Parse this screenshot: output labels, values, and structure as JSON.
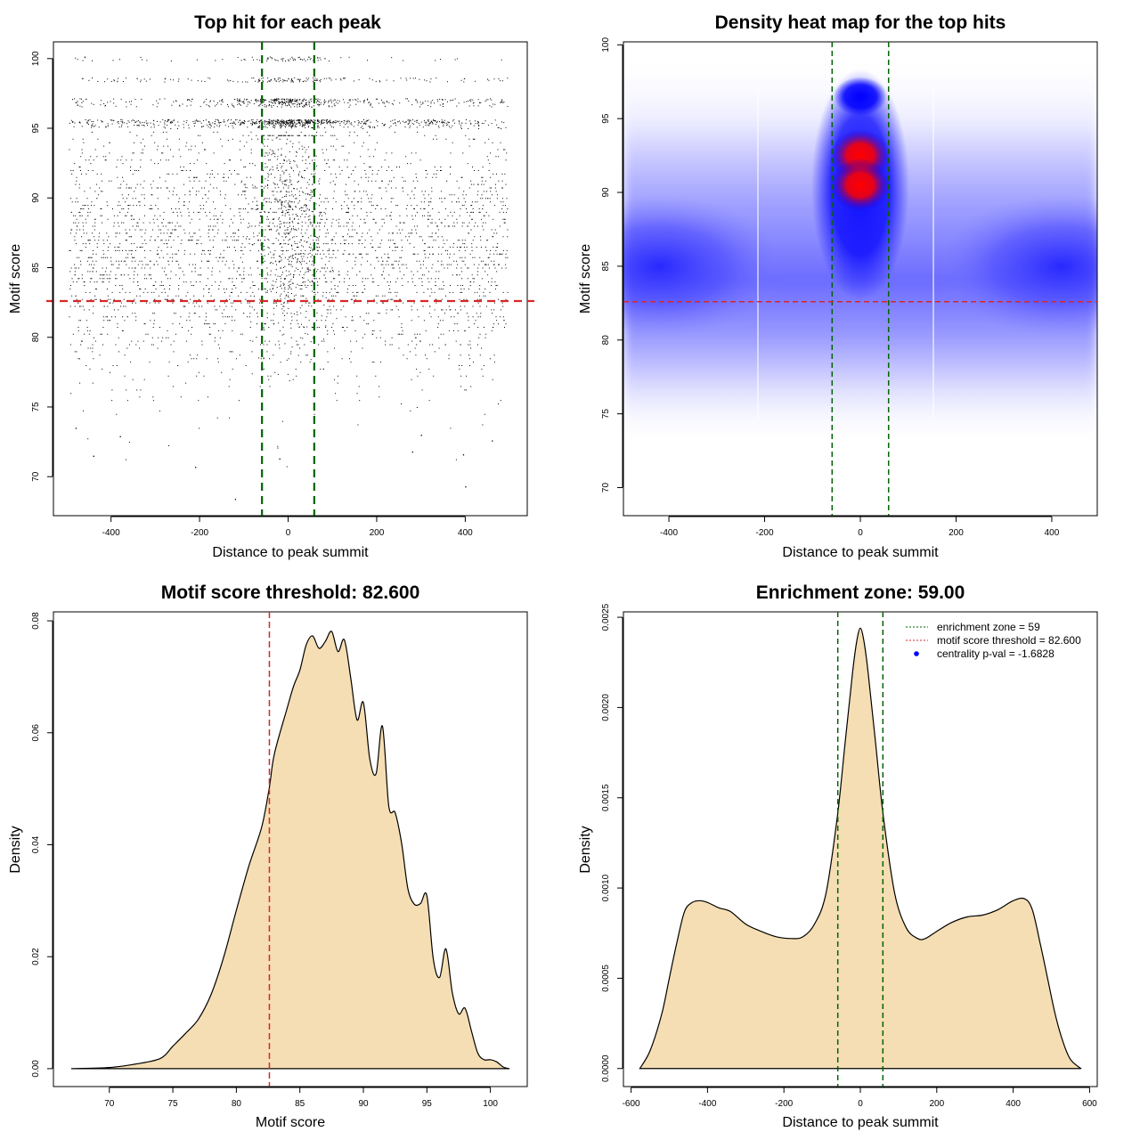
{
  "chart_data": [
    {
      "type": "scatter",
      "title": "Top hit for each peak",
      "xlabel": "Distance to peak summit",
      "ylabel": "Motif score",
      "xlim": [
        -530,
        540
      ],
      "ylim": [
        67.2,
        101.2
      ],
      "xticks": [
        -400,
        -200,
        0,
        200,
        400
      ],
      "yticks": [
        70,
        75,
        80,
        85,
        90,
        95,
        100
      ],
      "points_description": "Dense cloud of top-hit points across x in [-500, 500]; density highest between 82 and 95, concentrated around x=0; sparse below 77; discrete bands near 95.5, 97, 98.5, 100",
      "sample_points": [
        {
          "x": -120,
          "y": 68.4
        },
        {
          "x": 400,
          "y": 69.3
        },
        {
          "x": -210,
          "y": 70.7
        },
        {
          "x": -20,
          "y": 71.3
        },
        {
          "x": -440,
          "y": 71.5
        },
        {
          "x": 395,
          "y": 71.6
        },
        {
          "x": 280,
          "y": 71.8
        },
        {
          "x": 460,
          "y": 72.6
        },
        {
          "x": -480,
          "y": 73.5
        },
        {
          "x": 300,
          "y": 73.0
        },
        {
          "x": -380,
          "y": 72.9
        }
      ],
      "hlines": [
        {
          "y": 82.6,
          "color": "#d62728",
          "style": "dashed",
          "label": "motif score threshold"
        }
      ],
      "vlines": [
        {
          "x": -59,
          "color": "#006400",
          "style": "dashed"
        },
        {
          "x": 59,
          "color": "#006400",
          "style": "dashed"
        }
      ]
    },
    {
      "type": "heatmap",
      "title": "Density heat map for the top hits",
      "xlabel": "Distance to peak summit",
      "ylabel": "Motif score",
      "xlim": [
        -495,
        495
      ],
      "ylim": [
        68.1,
        100.2
      ],
      "xticks": [
        -400,
        -200,
        0,
        200,
        400
      ],
      "yticks": [
        70,
        75,
        80,
        85,
        90,
        95,
        100
      ],
      "colorscale": [
        "#ffffff",
        "#0000ff",
        "#ff0000"
      ],
      "hotspots": [
        {
          "x": 0,
          "y": 92.5,
          "level": "high",
          "color": "#ff0000"
        },
        {
          "x": 0,
          "y": 90.5,
          "level": "high",
          "color": "#ff0000"
        },
        {
          "x": 0,
          "y": 96.5,
          "level": "medium",
          "color": "#0000ff"
        },
        {
          "x": -420,
          "y": 85,
          "level": "medium",
          "color": "#2222ff"
        },
        {
          "x": 420,
          "y": 85,
          "level": "medium",
          "color": "#2222ff"
        }
      ],
      "hlines": [
        {
          "y": 82.6,
          "color": "#d62728",
          "style": "dashed"
        }
      ],
      "vlines": [
        {
          "x": -59,
          "color": "#006400",
          "style": "dashed"
        },
        {
          "x": 59,
          "color": "#006400",
          "style": "dashed"
        }
      ]
    },
    {
      "type": "area",
      "title": "Motif score threshold: 82.600",
      "xlabel": "Motif score",
      "ylabel": "Density",
      "xlim": [
        65.6,
        102.9
      ],
      "ylim": [
        -0.0032,
        0.0816
      ],
      "xticks": [
        70,
        75,
        80,
        85,
        90,
        95,
        100
      ],
      "yticks": [
        0.0,
        0.02,
        0.04,
        0.06,
        0.08
      ],
      "ytick_labels": [
        "0.00",
        "0.02",
        "0.04",
        "0.06",
        "0.08"
      ],
      "fill": "#f5deb3",
      "x": [
        67.0,
        70.0,
        72.0,
        74.0,
        75.0,
        76.0,
        77.0,
        78.0,
        79.0,
        80.0,
        81.0,
        82.0,
        82.6,
        83.0,
        84.0,
        84.5,
        85.0,
        85.5,
        86.0,
        86.5,
        87.0,
        87.5,
        88.0,
        88.5,
        89.0,
        89.5,
        90.0,
        90.5,
        91.0,
        91.5,
        92.0,
        92.5,
        93.0,
        93.5,
        94.0,
        94.5,
        95.0,
        95.5,
        96.0,
        96.5,
        97.0,
        97.5,
        98.0,
        98.5,
        99.0,
        99.5,
        100.0,
        100.5,
        101.0,
        101.5
      ],
      "y": [
        0.0,
        0.0002,
        0.0008,
        0.0018,
        0.004,
        0.0063,
        0.0088,
        0.0132,
        0.0199,
        0.0283,
        0.0363,
        0.0432,
        0.0503,
        0.0563,
        0.0644,
        0.0683,
        0.0712,
        0.0757,
        0.0773,
        0.0751,
        0.0763,
        0.0781,
        0.0745,
        0.0766,
        0.0699,
        0.0623,
        0.0654,
        0.0554,
        0.0527,
        0.0612,
        0.0469,
        0.0457,
        0.0404,
        0.0322,
        0.0294,
        0.0295,
        0.0309,
        0.0196,
        0.0163,
        0.0214,
        0.0136,
        0.0098,
        0.0108,
        0.0068,
        0.0028,
        0.0016,
        0.0016,
        0.0012,
        0.0003,
        0.0
      ],
      "vlines": [
        {
          "x": 82.6,
          "color": "#d62728",
          "style": "dashed"
        }
      ]
    },
    {
      "type": "area",
      "title": "Enrichment zone: 59.00",
      "xlabel": "Distance to peak summit",
      "ylabel": "Density",
      "xlim": [
        -620,
        620
      ],
      "ylim": [
        -0.0001,
        0.00253
      ],
      "xticks": [
        -600,
        -400,
        -200,
        0,
        200,
        400,
        600
      ],
      "yticks": [
        0.0,
        0.0005,
        0.001,
        0.0015,
        0.002,
        0.0025
      ],
      "ytick_labels": [
        "0.0000",
        "0.0005",
        "0.0010",
        "0.0015",
        "0.0020",
        "0.0025"
      ],
      "fill": "#f5deb3",
      "x": [
        -577,
        -550,
        -520,
        -500,
        -480,
        -460,
        -440,
        -420,
        -400,
        -370,
        -340,
        -300,
        -260,
        -220,
        -180,
        -150,
        -120,
        -90,
        -60,
        -40,
        -20,
        -10,
        0,
        10,
        20,
        40,
        60,
        90,
        120,
        150,
        170,
        200,
        240,
        280,
        320,
        360,
        400,
        430,
        450,
        470,
        490,
        510,
        530,
        550,
        577
      ],
      "y": [
        0.0,
        0.0001,
        0.0003,
        0.0005,
        0.0007,
        0.00087,
        0.00092,
        0.00093,
        0.00092,
        0.00089,
        0.00087,
        0.0008,
        0.00076,
        0.00073,
        0.00072,
        0.00073,
        0.0008,
        0.00097,
        0.0014,
        0.0018,
        0.0022,
        0.00236,
        0.00244,
        0.00236,
        0.0022,
        0.0018,
        0.0014,
        0.00097,
        0.00078,
        0.00072,
        0.00072,
        0.00076,
        0.00081,
        0.00084,
        0.00085,
        0.00088,
        0.00093,
        0.00094,
        0.00088,
        0.0007,
        0.0005,
        0.0003,
        0.00015,
        5e-05,
        0.0
      ],
      "vlines": [
        {
          "x": -59,
          "color": "#006400",
          "style": "dashed"
        },
        {
          "x": 59,
          "color": "#006400",
          "style": "dashed"
        }
      ],
      "legend": {
        "position": "top-right",
        "entries": [
          {
            "label": "enrichment zone = 59",
            "color": "#006400",
            "kind": "dotted-line"
          },
          {
            "label": "motif score threshold = 82.600",
            "color": "#d62728",
            "kind": "dotted-line"
          },
          {
            "label": "centrality p-val = -1.6828",
            "color": "#0000ff",
            "kind": "point"
          }
        ]
      }
    }
  ]
}
